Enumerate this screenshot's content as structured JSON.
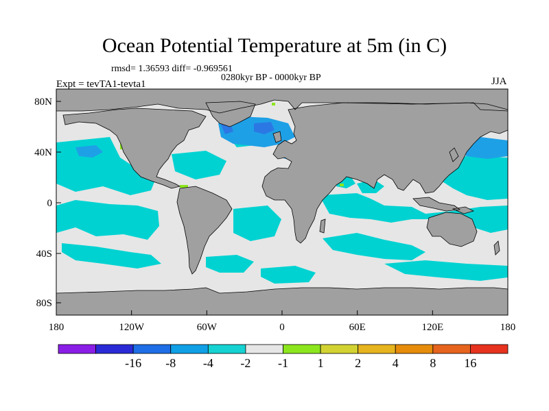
{
  "figure": {
    "title": "Ocean Potential Temperature at 5m (in C)",
    "stats_line": "rmsd= 1.36593 diff= -0.969561",
    "period": "0280kyr BP - 0000kyr BP",
    "experiment": "Expt = tevTA1-tevta1",
    "season": "JJA"
  },
  "axes": {
    "x_ticks": [
      "180",
      "120W",
      "60W",
      "0",
      "60E",
      "120E",
      "180"
    ],
    "y_ticks": [
      "80N",
      "40N",
      "0",
      "40S",
      "80S"
    ]
  },
  "colorbar": {
    "colors": [
      "#8b1ee6",
      "#2a2ad6",
      "#1e6ee6",
      "#0fa0e6",
      "#16d2d2",
      "#e6e6e6",
      "#8ce61e",
      "#d2d232",
      "#e6b41e",
      "#e68c0a",
      "#e6641e",
      "#e6321e"
    ],
    "labels": [
      "-16",
      "-8",
      "-4",
      "-2",
      "-1",
      "1",
      "2",
      "4",
      "8",
      "16"
    ]
  },
  "palette": {
    "land": "#a0a0a0",
    "neutral": "#e6e6e6",
    "cool1": "#00d2d2",
    "cool2": "#1ea0e6",
    "cool3": "#2b78e4",
    "warm1": "#8ce61e"
  }
}
